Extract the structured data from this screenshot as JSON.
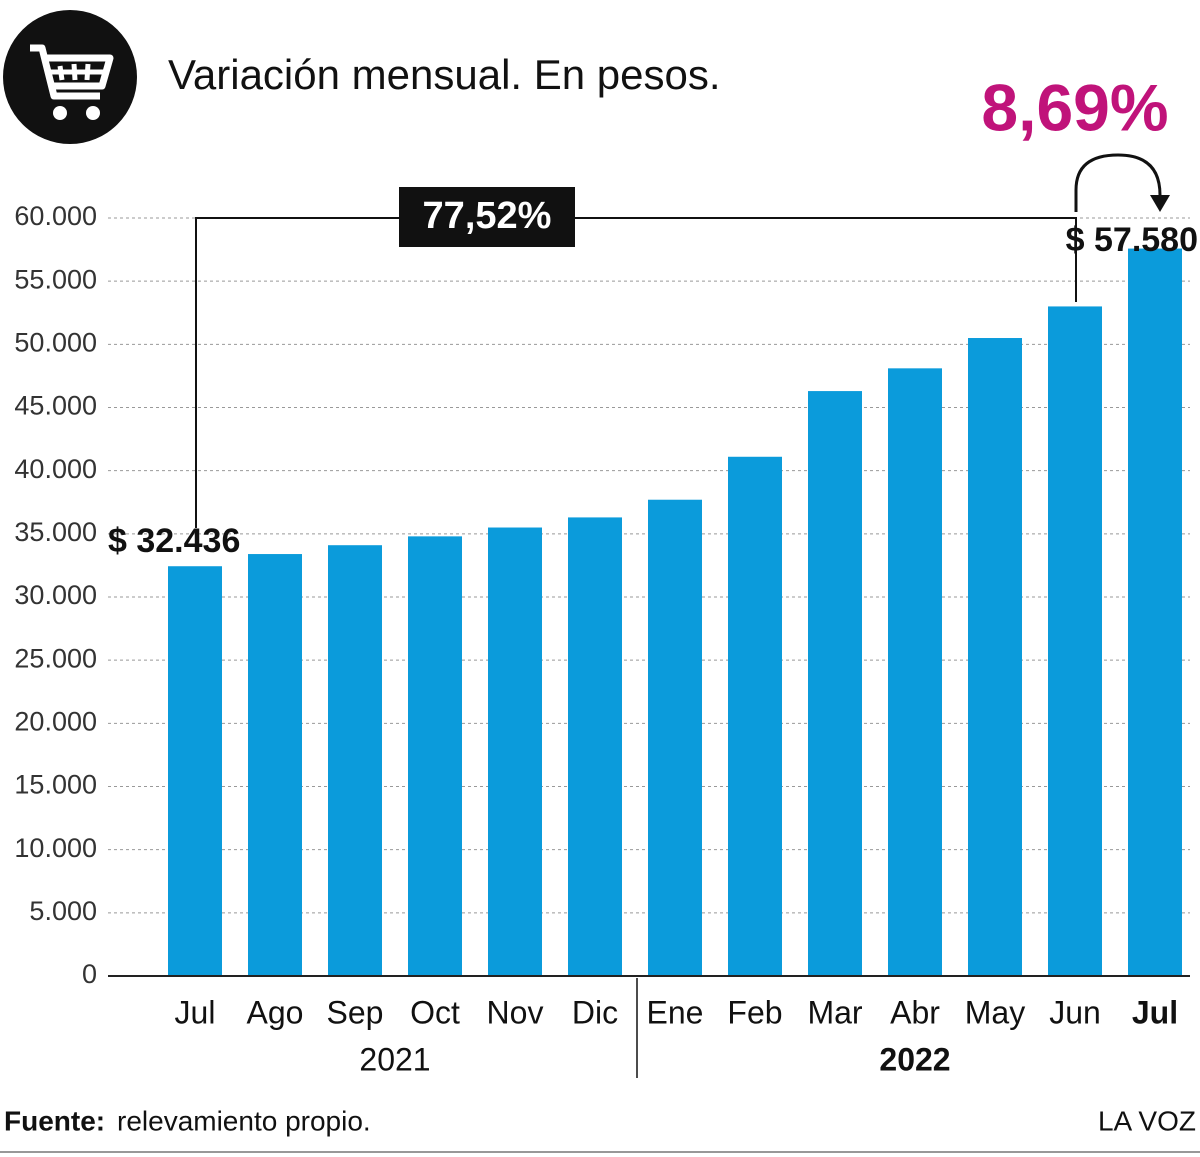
{
  "chart_data": {
    "type": "bar",
    "title": "Variación mensual. En pesos.",
    "categories": [
      "Jul",
      "Ago",
      "Sep",
      "Oct",
      "Nov",
      "Dic",
      "Ene",
      "Feb",
      "Mar",
      "Abr",
      "May",
      "Jun",
      "Jul"
    ],
    "groups": [
      {
        "label": "2021",
        "count": 6
      },
      {
        "label": "2022",
        "count": 7
      }
    ],
    "values": [
      32436,
      33400,
      34100,
      34800,
      35500,
      36300,
      37700,
      41100,
      46300,
      48100,
      50500,
      53000,
      57580
    ],
    "value_labels": [
      "$ 32.436",
      null,
      null,
      null,
      null,
      null,
      null,
      null,
      null,
      null,
      null,
      null,
      "$ 57.580"
    ],
    "color": "#0b9bdb",
    "ylim": [
      0,
      60000
    ],
    "yticks": [
      0,
      {
        "value": 5000,
        "label": "5.000"
      },
      {
        "value": 10000,
        "label": "10.000"
      },
      {
        "value": 15000,
        "label": "15.000"
      },
      {
        "value": 20000,
        "label": "20.000"
      },
      {
        "value": 25000,
        "label": "25.000"
      },
      {
        "value": 30000,
        "label": "30.000"
      },
      {
        "value": 35000,
        "label": "35.000"
      },
      {
        "value": 40000,
        "label": "40.000"
      },
      {
        "value": 45000,
        "label": "45.000"
      },
      {
        "value": 50000,
        "label": "50.000"
      },
      {
        "value": 55000,
        "label": "55.000"
      },
      {
        "value": 60000,
        "label": "60.000"
      }
    ],
    "grid": true,
    "annotations": {
      "total_change": "77,52%",
      "monthly_change": "8,69%"
    },
    "source_label": "Fuente:",
    "source": "relevamiento propio.",
    "brand": "LA VOZ"
  }
}
